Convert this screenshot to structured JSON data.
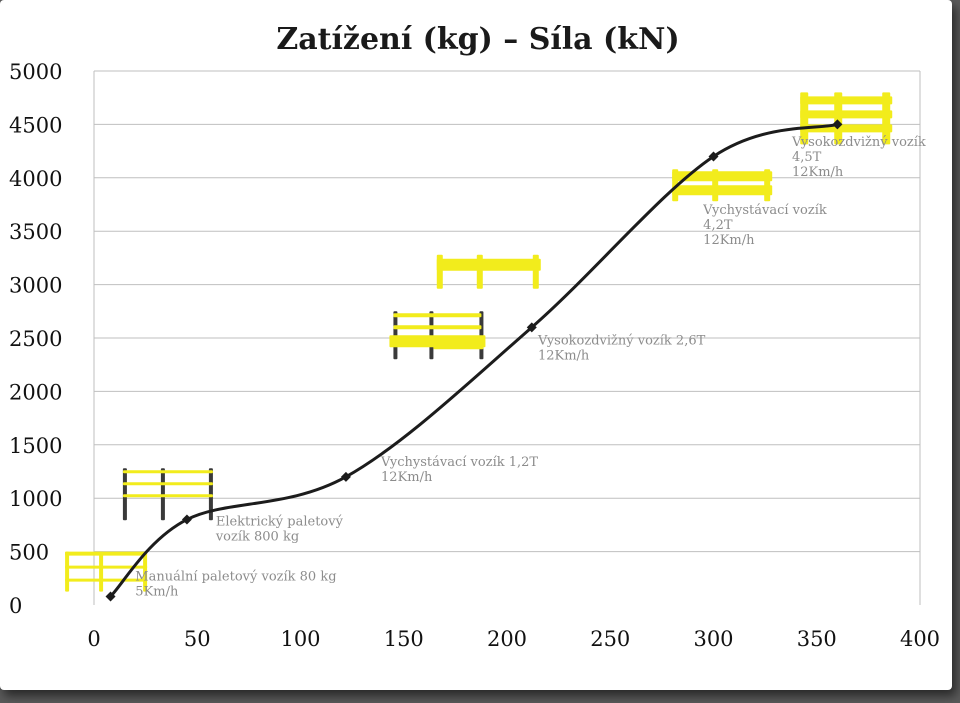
{
  "chart_data": {
    "type": "line",
    "title": "Zatížení (kg) – Síla (kN)",
    "xlabel": "",
    "ylabel": "",
    "xlim": [
      0,
      400
    ],
    "ylim": [
      0,
      5000
    ],
    "x_ticks": [
      0,
      50,
      100,
      150,
      200,
      250,
      300,
      350,
      400
    ],
    "y_ticks": [
      0,
      500,
      1000,
      1500,
      2000,
      2500,
      3000,
      3500,
      4000,
      4500,
      5000
    ],
    "grid": true,
    "smooth": true,
    "colors": {
      "line": "#1c1c1c",
      "grid": "#bfbfbf",
      "barrier": "#f2ec1c",
      "barrier_dark": "#3a3a3a"
    },
    "series": [
      {
        "x": [
          8,
          45,
          122,
          212,
          300,
          360
        ],
        "y": [
          80,
          800,
          1200,
          2600,
          4200,
          4500
        ]
      }
    ],
    "annotations": [
      {
        "lines": [
          "Manuální paletový vozík 80 kg",
          "5Km/h"
        ],
        "x": 20,
        "y": 230
      },
      {
        "lines": [
          "Elektrický paletový",
          "vozík 800 kg"
        ],
        "x": 59,
        "y": 745
      },
      {
        "lines": [
          "Vychystávací vozík 1,2T",
          "12Km/h"
        ],
        "x": 139,
        "y": 1300
      },
      {
        "lines": [
          "Vysokozdvižný vozík 2,6T",
          "12Km/h"
        ],
        "x": 215,
        "y": 2440
      },
      {
        "lines": [
          "Vychystávací vozík",
          "4,2T",
          "12Km/h"
        ],
        "x": 295,
        "y": 3660
      },
      {
        "lines": [
          "Vysokozdvižný vozík",
          "4,5T",
          "12Km/h"
        ],
        "x": 338,
        "y": 4300
      }
    ],
    "barrier_icons": [
      {
        "type": "handrail-yellow",
        "x": -14,
        "y": 500
      },
      {
        "type": "handrail-dark-posts",
        "x": 14,
        "y": 1280
      },
      {
        "type": "rack-guard-dark-posts",
        "x": 145,
        "y": 2750
      },
      {
        "type": "single-guard",
        "x": 166,
        "y": 3280
      },
      {
        "type": "long-guard",
        "x": 280,
        "y": 4080
      },
      {
        "type": "triple-rail",
        "x": 342,
        "y": 4800
      }
    ]
  }
}
